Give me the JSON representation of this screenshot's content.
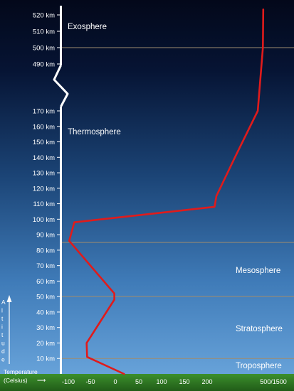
{
  "diagram": {
    "altitude_ticks_upper": [
      "520 km",
      "510 km",
      "500 km",
      "490 km"
    ],
    "altitude_ticks_lower": [
      "170 km",
      "160 km",
      "150 km",
      "140 km",
      "130 km",
      "120 km",
      "110 km",
      "100 km",
      "90 km",
      "80 km",
      "70 km",
      "60 km",
      "50 km",
      "40 km",
      "30 km",
      "20 km",
      "10 km"
    ],
    "layers": {
      "exosphere": "Exosphere",
      "thermosphere": "Thermosphere",
      "mesosphere": "Mesosphere",
      "stratosphere": "Stratosphere",
      "troposphere": "Troposphere"
    },
    "boundaries_km": [
      10,
      50,
      85,
      500
    ],
    "temperature_axis": {
      "title_line1": "Temperature",
      "title_line2": "(Celsius)",
      "arrow": "⟶",
      "ticks": [
        "-100",
        "-50",
        "0",
        "50",
        "100",
        "150",
        "200",
        "500/1500"
      ]
    },
    "altitude_axis_letters": [
      "A",
      "l",
      "t",
      "i",
      "t",
      "u",
      "d",
      "e"
    ],
    "temperature_profile": [
      {
        "altitude_km": 0,
        "temp_c": 15
      },
      {
        "altitude_km": 11,
        "temp_c": -55
      },
      {
        "altitude_km": 20,
        "temp_c": -56
      },
      {
        "altitude_km": 48,
        "temp_c": -2
      },
      {
        "altitude_km": 52,
        "temp_c": -2
      },
      {
        "altitude_km": 86,
        "temp_c": -90
      },
      {
        "altitude_km": 98,
        "temp_c": -80
      },
      {
        "altitude_km": 108,
        "temp_c": 170
      },
      {
        "altitude_km": 115,
        "temp_c": 240
      },
      {
        "altitude_km": 140,
        "temp_c": 300
      },
      {
        "altitude_km": 170,
        "temp_c": 350
      },
      {
        "altitude_km": 500,
        "temp_c": 380
      },
      {
        "altitude_km": 525,
        "temp_c": 385
      }
    ],
    "colors": {
      "sky_top": "#03081a",
      "sky_bottom": "#6ea9df",
      "ground": "#2f7a23",
      "profile": "#e01b1b",
      "boundary": "#a08c6e"
    }
  }
}
